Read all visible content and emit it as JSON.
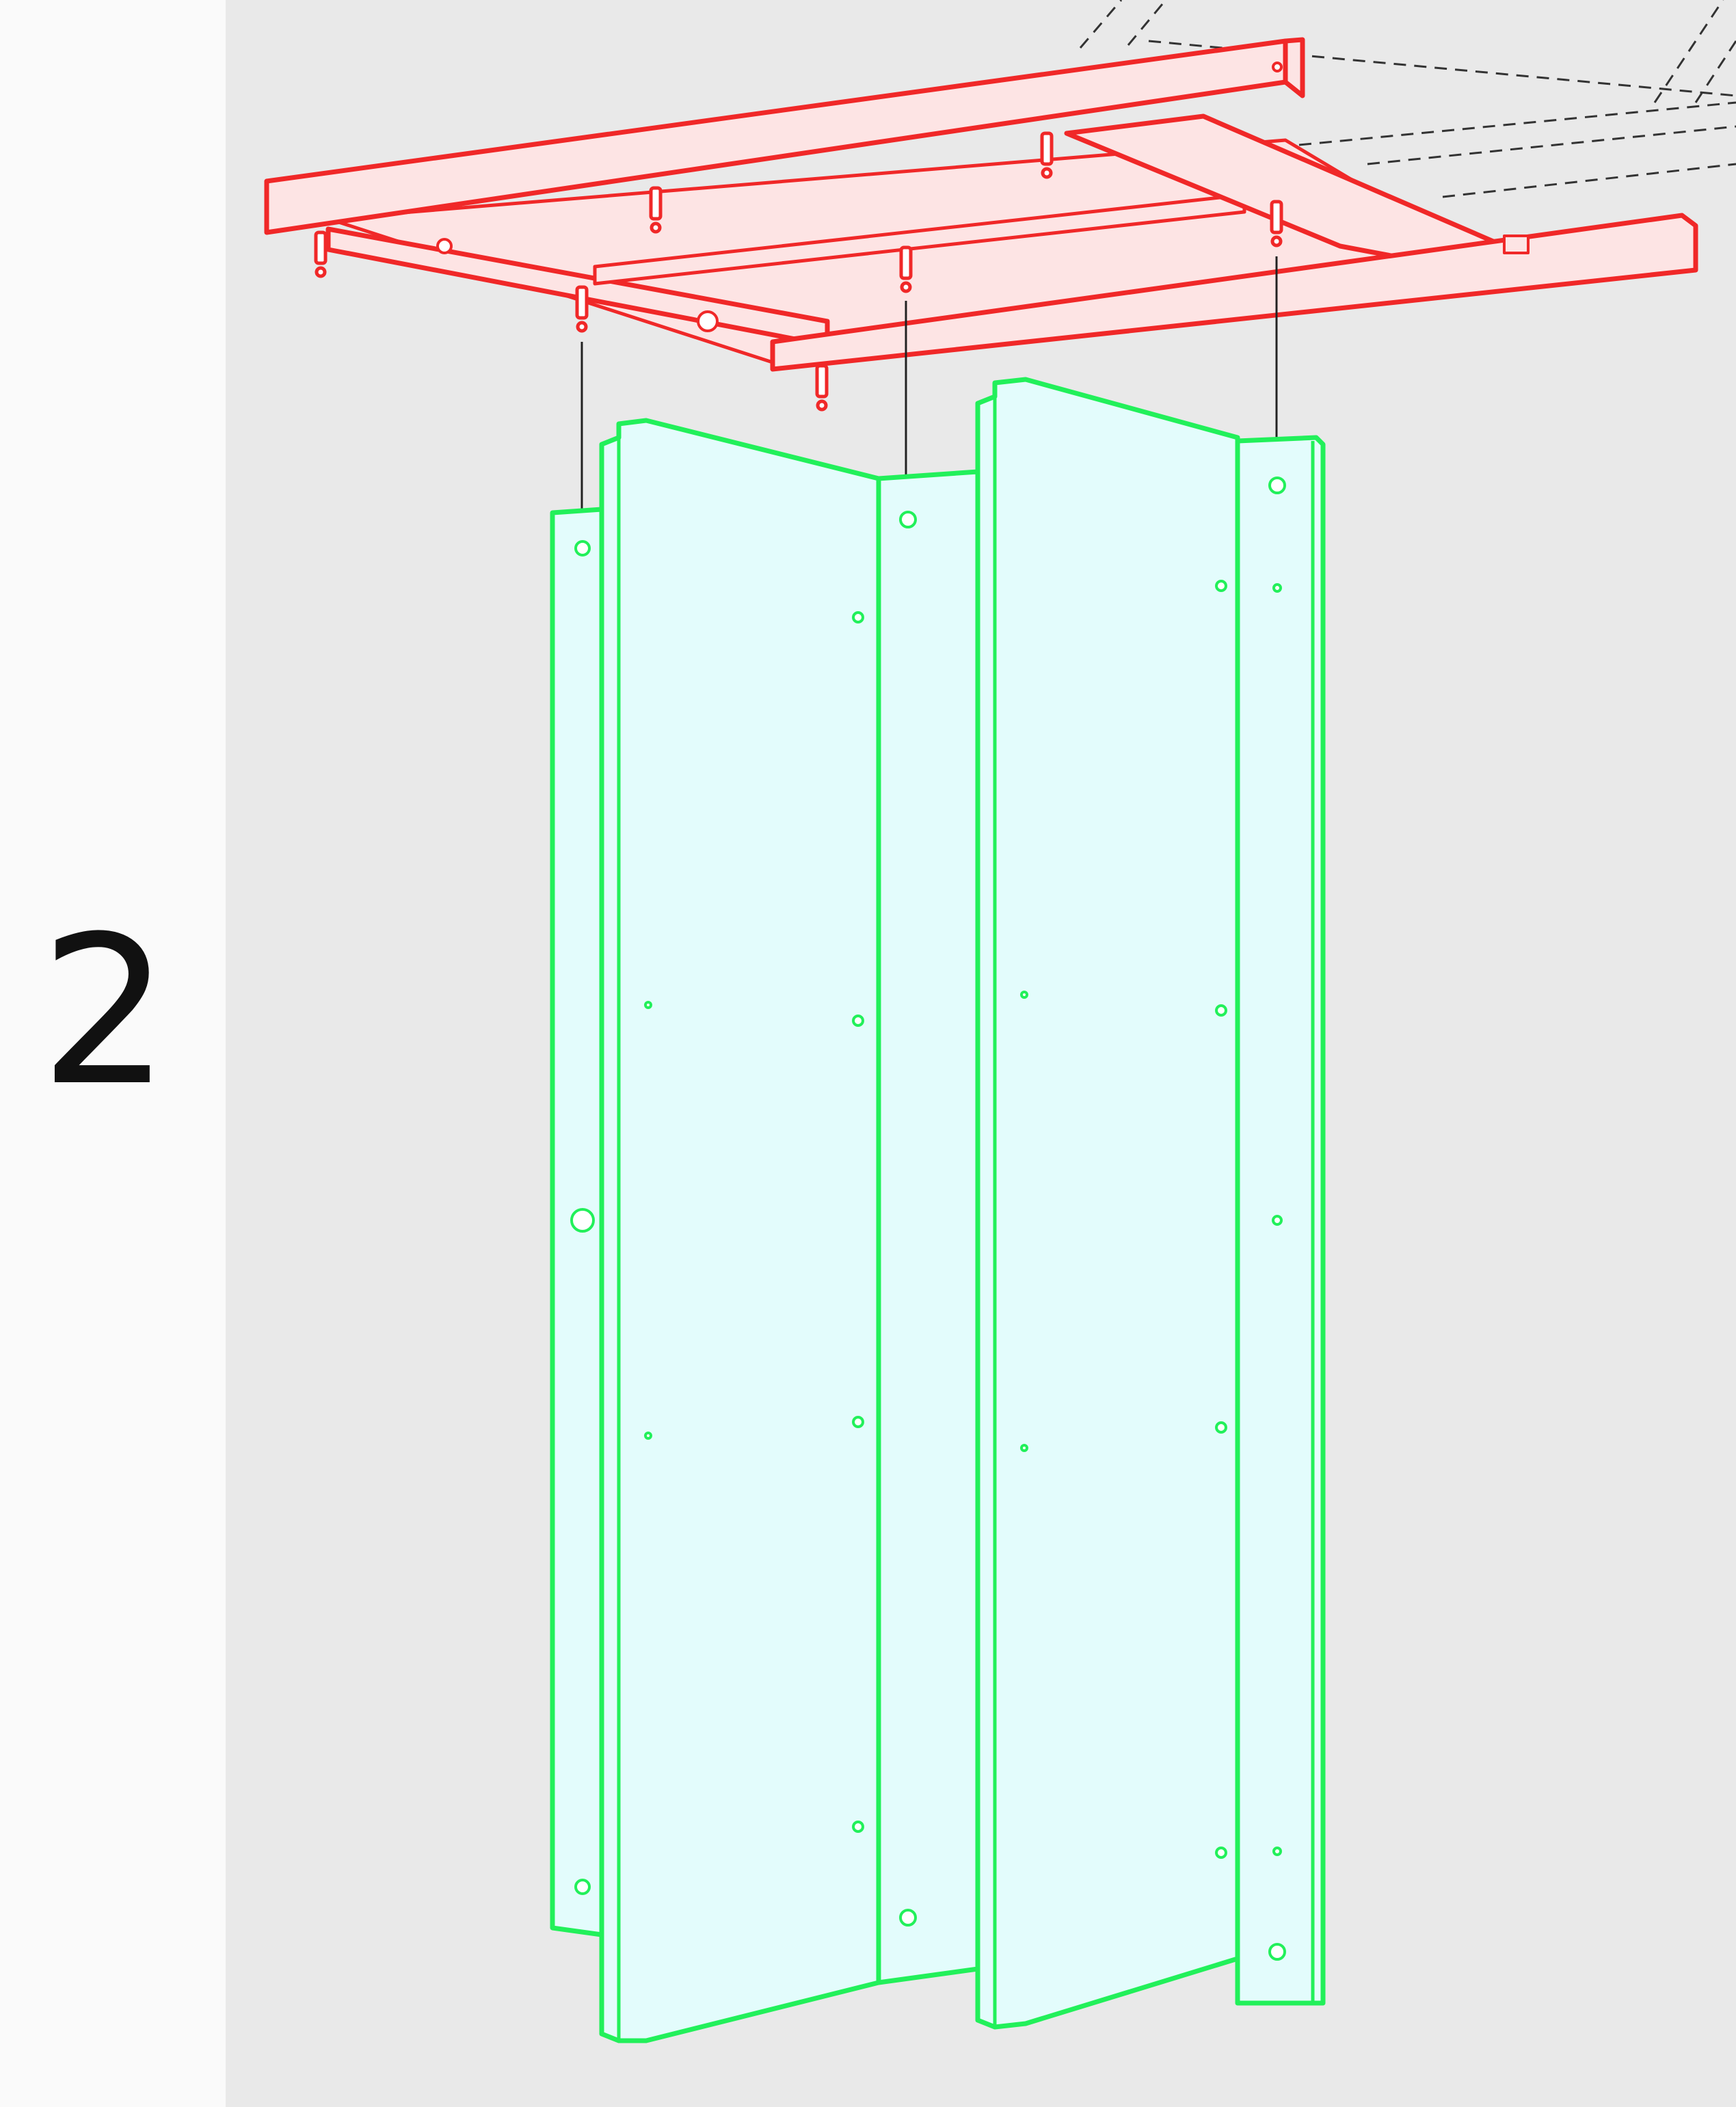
{
  "step": {
    "number": "2"
  },
  "colors": {
    "background": "#e9e9e9",
    "sidebar": "#fafafa",
    "frame_stroke": "#f02828",
    "frame_fill": "#fde4e4",
    "panel_stroke": "#22f05a",
    "panel_fill": "#e3fcfc",
    "guide_line": "#222222"
  },
  "icons": {
    "dowel": "dowel-icon",
    "screw_hole": "screw-hole-icon"
  }
}
